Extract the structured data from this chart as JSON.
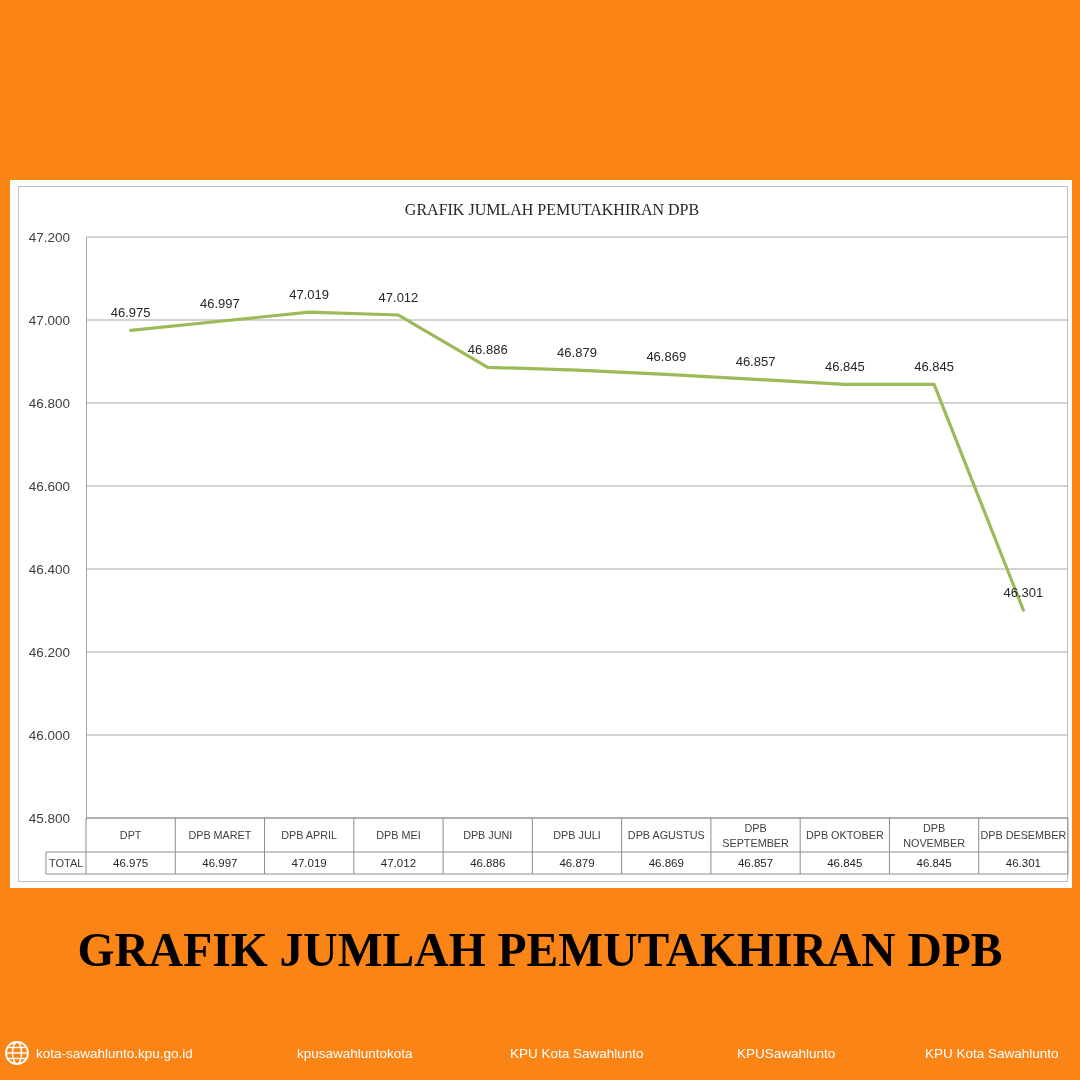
{
  "chart_data": {
    "type": "line",
    "title": "GRAFIK JUMLAH PEMUTAKHIRAN DPB",
    "categories": [
      "DPT",
      "DPB MARET",
      "DPB APRIL",
      "DPB MEI",
      "DPB JUNI",
      "DPB JULI",
      "DPB AGUSTUS",
      "DPB SEPTEMBER",
      "DPB OKTOBER",
      "DPB NOVEMBER",
      "DPB DESEMBER"
    ],
    "series": [
      {
        "name": "TOTAL",
        "color": "#9bbb59",
        "values": [
          46975,
          46997,
          47019,
          47012,
          46886,
          46879,
          46869,
          46857,
          46845,
          46845,
          46301
        ],
        "value_labels": [
          "46.975",
          "46.997",
          "47.019",
          "47.012",
          "46.886",
          "46.879",
          "46.869",
          "46.857",
          "46.845",
          "46.845",
          "46.301"
        ]
      }
    ],
    "ylim": [
      45800,
      47200
    ],
    "yticks": [
      {
        "value": 45800,
        "label": "45.800"
      },
      {
        "value": 46000,
        "label": "46.000"
      },
      {
        "value": 46200,
        "label": "46.200"
      },
      {
        "value": 46400,
        "label": "46.400"
      },
      {
        "value": 46600,
        "label": "46.600"
      },
      {
        "value": 46800,
        "label": "46.800"
      },
      {
        "value": 47000,
        "label": "47.000"
      },
      {
        "value": 47200,
        "label": "47.200"
      }
    ],
    "grid": "y",
    "annotations": [
      "GRAFIK JUMLAH PEMUTAKHIRAN DPB",
      "kota-sawahlunto.kpu.go.id",
      "kpusawahluntokota",
      "KPU Kota Sawahlunto",
      "KPUSawahlunto",
      "KPU Kota Sawahlunto"
    ]
  }
}
